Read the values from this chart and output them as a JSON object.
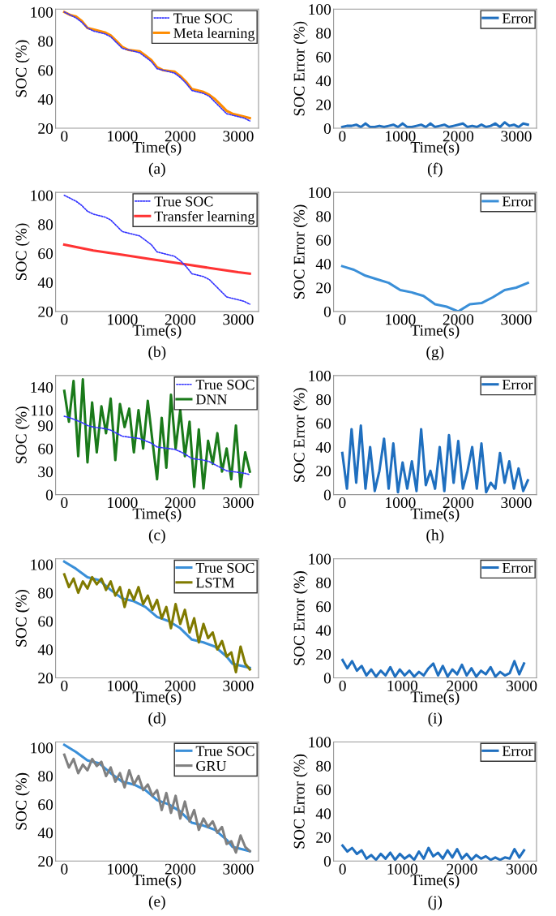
{
  "chart_data": [
    {
      "type": "line",
      "xlabel": "Time(s)",
      "ylabel": "SOC (%)",
      "annotations": [
        "(a)"
      ],
      "xlim": [
        -150,
        3350
      ],
      "ylim": [
        20,
        102
      ],
      "xticks": [
        0,
        1000,
        2000,
        3000
      ],
      "yticks": [
        20,
        40,
        60,
        80,
        100
      ],
      "legend": "top right",
      "series": [
        {
          "name": "True SOC",
          "color": "#3333ff",
          "line_style": "dotted",
          "x": [
            0,
            100,
            200,
            300,
            400,
            500,
            700,
            800,
            900,
            1000,
            1100,
            1300,
            1400,
            1500,
            1600,
            1700,
            1900,
            2000,
            2100,
            2200,
            2300,
            2400,
            2500,
            2600,
            2700,
            2800,
            2900,
            3000,
            3100,
            3200
          ],
          "values": [
            100,
            98,
            96,
            93,
            89,
            87,
            85,
            83,
            79,
            75,
            74,
            72,
            69,
            66,
            61,
            60,
            58,
            55,
            51,
            46,
            45,
            44,
            42,
            38,
            34,
            30,
            29,
            28,
            27,
            25
          ]
        },
        {
          "name": "Meta learning",
          "color": "#ff8c00",
          "line_style": "solid",
          "x": [
            0,
            100,
            200,
            300,
            400,
            500,
            700,
            800,
            900,
            1000,
            1100,
            1300,
            1400,
            1500,
            1600,
            1700,
            1900,
            2000,
            2100,
            2200,
            2300,
            2400,
            2500,
            2600,
            2700,
            2800,
            2900,
            3000,
            3100,
            3200
          ],
          "values": [
            100,
            98,
            97,
            94,
            89,
            88,
            86,
            84,
            80,
            76,
            74,
            73,
            70,
            67,
            62,
            60,
            59,
            56,
            52,
            47,
            46,
            45,
            43,
            40,
            36,
            32,
            30,
            29,
            28,
            27
          ]
        }
      ]
    },
    {
      "type": "line",
      "xlabel": "Time(s)",
      "ylabel": "SOC Error (%)",
      "annotations": [
        "(f)"
      ],
      "xlim": [
        -150,
        3350
      ],
      "ylim": [
        0,
        100
      ],
      "xticks": [
        0,
        1000,
        2000,
        3000
      ],
      "yticks": [
        0,
        20,
        40,
        60,
        80,
        100
      ],
      "legend": "top right",
      "series": [
        {
          "name": "Error",
          "color": "#1f6fbf",
          "line_style": "solid",
          "x": [
            0,
            80,
            160,
            240,
            320,
            400,
            480,
            560,
            640,
            720,
            800,
            880,
            960,
            1040,
            1120,
            1200,
            1280,
            1360,
            1440,
            1520,
            1600,
            1680,
            1760,
            1840,
            1920,
            2000,
            2080,
            2160,
            2240,
            2320,
            2400,
            2480,
            2560,
            2640,
            2720,
            2800,
            2880,
            2960,
            3040,
            3120,
            3200
          ],
          "values": [
            1,
            2,
            2,
            3,
            1,
            4,
            1,
            1,
            2,
            1,
            2,
            3,
            1,
            4,
            1,
            1,
            2,
            3,
            1,
            4,
            1,
            2,
            3,
            1,
            2,
            3,
            4,
            1,
            2,
            1,
            3,
            1,
            2,
            4,
            1,
            5,
            2,
            3,
            1,
            4,
            3
          ]
        }
      ]
    },
    {
      "type": "line",
      "xlabel": "Time(s)",
      "ylabel": "SOC (%)",
      "annotations": [
        "(b)"
      ],
      "xlim": [
        -150,
        3350
      ],
      "ylim": [
        20,
        102
      ],
      "xticks": [
        0,
        1000,
        2000,
        3000
      ],
      "yticks": [
        20,
        40,
        60,
        80,
        100
      ],
      "legend": "top right",
      "series": [
        {
          "name": "True SOC",
          "color": "#3333ff",
          "line_style": "dotted",
          "x": [
            0,
            100,
            200,
            300,
            400,
            500,
            700,
            800,
            900,
            1000,
            1100,
            1300,
            1400,
            1500,
            1600,
            1700,
            1900,
            2000,
            2100,
            2200,
            2300,
            2400,
            2500,
            2600,
            2700,
            2800,
            2900,
            3000,
            3100,
            3200
          ],
          "values": [
            100,
            98,
            96,
            93,
            89,
            87,
            85,
            83,
            79,
            75,
            74,
            72,
            69,
            66,
            61,
            60,
            58,
            55,
            51,
            46,
            45,
            44,
            42,
            38,
            34,
            30,
            29,
            28,
            27,
            25
          ]
        },
        {
          "name": "Transfer learning",
          "color": "#ff3333",
          "line_style": "solid",
          "x": [
            0,
            500,
            1000,
            1500,
            2000,
            2500,
            3000,
            3200
          ],
          "values": [
            66,
            62,
            59,
            56,
            53,
            50,
            47,
            46
          ]
        }
      ]
    },
    {
      "type": "line",
      "xlabel": "Time(s)",
      "ylabel": "SOC Error (%)",
      "annotations": [
        "(g)"
      ],
      "xlim": [
        -150,
        3350
      ],
      "ylim": [
        0,
        100
      ],
      "xticks": [
        0,
        1000,
        2000,
        3000
      ],
      "yticks": [
        0,
        20,
        40,
        60,
        80,
        100
      ],
      "legend": "top right",
      "series": [
        {
          "name": "Error",
          "color": "#3a8fd8",
          "line_style": "solid",
          "x": [
            0,
            200,
            400,
            600,
            800,
            1000,
            1200,
            1400,
            1600,
            1800,
            2000,
            2200,
            2400,
            2600,
            2800,
            3000,
            3200
          ],
          "values": [
            38,
            35,
            30,
            27,
            24,
            18,
            16,
            13,
            6,
            4,
            0,
            6,
            7,
            12,
            18,
            20,
            24
          ]
        }
      ]
    },
    {
      "type": "line",
      "xlabel": "Time(s)",
      "ylabel": "SOC (%)",
      "annotations": [
        "(c)"
      ],
      "xlim": [
        -150,
        3350
      ],
      "ylim": [
        0,
        155
      ],
      "xticks": [
        0,
        1000,
        2000,
        3000
      ],
      "yticks": [
        0,
        30,
        60,
        90,
        110,
        140
      ],
      "legend": "top right",
      "series": [
        {
          "name": "True SOC",
          "color": "#3333ff",
          "line_style": "dotted",
          "x": [
            0,
            100,
            200,
            300,
            400,
            500,
            700,
            800,
            900,
            1000,
            1100,
            1300,
            1400,
            1500,
            1600,
            1700,
            1900,
            2000,
            2100,
            2200,
            2300,
            2400,
            2500,
            2600,
            2700,
            2800,
            2900,
            3000,
            3100,
            3200
          ],
          "values": [
            102,
            100,
            97,
            94,
            90,
            88,
            86,
            84,
            80,
            76,
            75,
            73,
            70,
            67,
            62,
            61,
            59,
            56,
            52,
            47,
            46,
            45,
            43,
            39,
            35,
            31,
            30,
            29,
            28,
            26
          ]
        },
        {
          "name": "DNN",
          "color": "#1a7a1a",
          "line_style": "solid",
          "x": [
            0,
            80,
            160,
            240,
            320,
            400,
            480,
            560,
            640,
            720,
            800,
            880,
            960,
            1040,
            1120,
            1200,
            1280,
            1360,
            1440,
            1520,
            1600,
            1680,
            1760,
            1840,
            1920,
            2000,
            2080,
            2160,
            2240,
            2320,
            2400,
            2480,
            2560,
            2640,
            2720,
            2800,
            2880,
            2960,
            3040,
            3120,
            3200
          ],
          "values": [
            135,
            95,
            148,
            50,
            150,
            42,
            120,
            55,
            115,
            80,
            125,
            45,
            118,
            88,
            112,
            55,
            110,
            60,
            122,
            70,
            20,
            100,
            35,
            130,
            60,
            110,
            50,
            95,
            10,
            85,
            8,
            70,
            40,
            80,
            30,
            60,
            20,
            90,
            10,
            55,
            30
          ]
        }
      ]
    },
    {
      "type": "line",
      "xlabel": "Time(s)",
      "ylabel": "SOC Error (%)",
      "annotations": [
        "(h)"
      ],
      "xlim": [
        -150,
        3350
      ],
      "ylim": [
        0,
        100
      ],
      "xticks": [
        0,
        1000,
        2000,
        3000
      ],
      "yticks": [
        0,
        20,
        40,
        60,
        80,
        100
      ],
      "legend": "top right",
      "series": [
        {
          "name": "Error",
          "color": "#1f6fbf",
          "line_style": "solid",
          "x": [
            0,
            80,
            160,
            240,
            320,
            400,
            480,
            560,
            640,
            720,
            800,
            880,
            960,
            1040,
            1120,
            1200,
            1280,
            1360,
            1440,
            1520,
            1600,
            1680,
            1760,
            1840,
            1920,
            2000,
            2080,
            2160,
            2240,
            2320,
            2400,
            2480,
            2560,
            2640,
            2720,
            2800,
            2880,
            2960,
            3040,
            3120,
            3200
          ],
          "values": [
            35,
            5,
            55,
            10,
            58,
            5,
            40,
            3,
            20,
            47,
            5,
            43,
            2,
            27,
            5,
            28,
            3,
            55,
            8,
            20,
            5,
            40,
            3,
            50,
            10,
            45,
            5,
            20,
            40,
            5,
            43,
            2,
            10,
            5,
            35,
            10,
            28,
            5,
            22,
            3,
            12
          ]
        }
      ]
    },
    {
      "type": "line",
      "xlabel": "Time(s)",
      "ylabel": "SOC (%)",
      "annotations": [
        "(d)"
      ],
      "xlim": [
        -150,
        3350
      ],
      "ylim": [
        20,
        104
      ],
      "xticks": [
        0,
        1000,
        2000,
        3000
      ],
      "yticks": [
        20,
        40,
        60,
        80,
        100
      ],
      "legend": "top right",
      "series": [
        {
          "name": "True SOC",
          "color": "#3a8fd8",
          "line_style": "solid",
          "x": [
            0,
            200,
            400,
            600,
            800,
            1000,
            1200,
            1400,
            1600,
            1800,
            2000,
            2200,
            2400,
            2600,
            2800,
            2900,
            3000,
            3200
          ],
          "values": [
            102,
            97,
            91,
            89,
            82,
            76,
            74,
            70,
            63,
            60,
            55,
            47,
            45,
            42,
            35,
            30,
            29,
            27
          ]
        },
        {
          "name": "LSTM",
          "color": "#807a00",
          "line_style": "solid",
          "x": [
            0,
            80,
            160,
            240,
            320,
            400,
            480,
            560,
            640,
            720,
            800,
            880,
            960,
            1040,
            1120,
            1200,
            1280,
            1360,
            1440,
            1520,
            1600,
            1680,
            1760,
            1840,
            1920,
            2000,
            2080,
            2160,
            2240,
            2320,
            2400,
            2480,
            2560,
            2640,
            2720,
            2800,
            2880,
            2960,
            3040,
            3120,
            3200
          ],
          "values": [
            93,
            84,
            90,
            80,
            88,
            83,
            91,
            86,
            90,
            82,
            88,
            78,
            84,
            70,
            82,
            75,
            84,
            72,
            78,
            68,
            75,
            62,
            70,
            55,
            72,
            58,
            68,
            52,
            62,
            45,
            58,
            48,
            52,
            40,
            46,
            35,
            38,
            24,
            42,
            30,
            26
          ]
        }
      ]
    },
    {
      "type": "line",
      "xlabel": "Time(s)",
      "ylabel": "SOC Error (%)",
      "annotations": [
        "(i)"
      ],
      "xlim": [
        -150,
        3250
      ],
      "ylim": [
        0,
        100
      ],
      "xticks": [
        0,
        1000,
        2000,
        3000
      ],
      "yticks": [
        0,
        20,
        40,
        60,
        80,
        100
      ],
      "legend": "top right",
      "series": [
        {
          "name": "Error",
          "color": "#1f6fbf",
          "line_style": "solid",
          "x": [
            0,
            80,
            160,
            240,
            320,
            400,
            480,
            560,
            640,
            720,
            800,
            880,
            960,
            1040,
            1120,
            1200,
            1280,
            1360,
            1440,
            1520,
            1600,
            1680,
            1760,
            1840,
            1920,
            2000,
            2080,
            2160,
            2240,
            2320,
            2400,
            2480,
            2560,
            2640,
            2720,
            2800,
            2880,
            2960,
            3040
          ],
          "values": [
            15,
            8,
            14,
            6,
            10,
            2,
            7,
            1,
            6,
            2,
            9,
            1,
            7,
            2,
            6,
            1,
            5,
            2,
            8,
            12,
            2,
            10,
            1,
            7,
            3,
            11,
            2,
            8,
            1,
            6,
            3,
            9,
            1,
            5,
            2,
            4,
            14,
            3,
            12
          ]
        }
      ]
    },
    {
      "type": "line",
      "xlabel": "Time(s)",
      "ylabel": "SOC (%)",
      "annotations": [
        "(e)"
      ],
      "xlim": [
        -150,
        3350
      ],
      "ylim": [
        20,
        104
      ],
      "xticks": [
        0,
        1000,
        2000,
        3000
      ],
      "yticks": [
        20,
        40,
        60,
        80,
        100
      ],
      "legend": "top right",
      "series": [
        {
          "name": "True SOC",
          "color": "#3a8fd8",
          "line_style": "solid",
          "x": [
            0,
            200,
            400,
            600,
            800,
            1000,
            1200,
            1400,
            1600,
            1800,
            2000,
            2200,
            2400,
            2600,
            2800,
            2900,
            3000,
            3200
          ],
          "values": [
            102,
            97,
            91,
            89,
            82,
            76,
            74,
            70,
            63,
            60,
            55,
            47,
            45,
            42,
            35,
            30,
            29,
            27
          ]
        },
        {
          "name": "GRU",
          "color": "#808080",
          "line_style": "solid",
          "x": [
            0,
            80,
            160,
            240,
            320,
            400,
            480,
            560,
            640,
            720,
            800,
            880,
            960,
            1040,
            1120,
            1200,
            1280,
            1360,
            1440,
            1520,
            1600,
            1680,
            1760,
            1840,
            1920,
            2000,
            2080,
            2160,
            2240,
            2320,
            2400,
            2480,
            2560,
            2640,
            2720,
            2800,
            2880,
            2960,
            3040,
            3120,
            3200
          ],
          "values": [
            95,
            86,
            92,
            82,
            88,
            84,
            92,
            87,
            90,
            80,
            86,
            76,
            82,
            72,
            84,
            74,
            80,
            70,
            74,
            66,
            70,
            56,
            68,
            54,
            66,
            50,
            62,
            48,
            56,
            42,
            50,
            44,
            48,
            40,
            44,
            32,
            34,
            26,
            38,
            30,
            27
          ]
        }
      ]
    },
    {
      "type": "line",
      "xlabel": "Time(s)",
      "ylabel": "SOC Error (%)",
      "annotations": [
        "(j)"
      ],
      "xlim": [
        -150,
        3250
      ],
      "ylim": [
        0,
        100
      ],
      "xticks": [
        0,
        1000,
        2000,
        3000
      ],
      "yticks": [
        0,
        20,
        40,
        60,
        80,
        100
      ],
      "legend": "top right",
      "series": [
        {
          "name": "Error",
          "color": "#1f6fbf",
          "line_style": "solid",
          "x": [
            0,
            80,
            160,
            240,
            320,
            400,
            480,
            560,
            640,
            720,
            800,
            880,
            960,
            1040,
            1120,
            1200,
            1280,
            1360,
            1440,
            1520,
            1600,
            1680,
            1760,
            1840,
            1920,
            2000,
            2080,
            2160,
            2240,
            2320,
            2400,
            2480,
            2560,
            2640,
            2720,
            2800,
            2880,
            2960,
            3040
          ],
          "values": [
            13,
            8,
            11,
            6,
            9,
            2,
            5,
            1,
            6,
            2,
            7,
            1,
            6,
            2,
            5,
            1,
            8,
            2,
            11,
            4,
            7,
            2,
            9,
            3,
            10,
            2,
            6,
            1,
            5,
            2,
            4,
            1,
            3,
            1,
            3,
            2,
            10,
            3,
            9
          ]
        }
      ]
    }
  ]
}
